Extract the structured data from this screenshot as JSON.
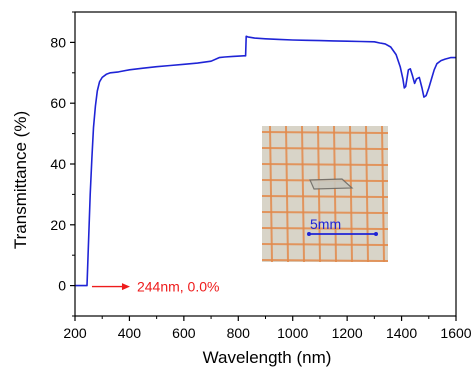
{
  "chart_data": {
    "type": "line",
    "title": "",
    "xlabel": "Wavelength (nm)",
    "ylabel": "Transmittance (%)",
    "xlim": [
      200,
      1600
    ],
    "ylim": [
      -10,
      90
    ],
    "x_ticks": [
      200,
      400,
      600,
      800,
      1000,
      1200,
      1400,
      1600
    ],
    "y_ticks": [
      0,
      20,
      40,
      60,
      80
    ],
    "grid": false,
    "legend": "none",
    "line_color": "#1f24d6",
    "series": [
      {
        "x": [
          200,
          244,
          250,
          256,
          262,
          268,
          275,
          282,
          290,
          300,
          315,
          330,
          360,
          400,
          450,
          500,
          550,
          600,
          650,
          700,
          730,
          750,
          780,
          820,
          827,
          829,
          835,
          860,
          900,
          950,
          1000,
          1050,
          1100,
          1150,
          1200,
          1250,
          1300,
          1320,
          1340,
          1360,
          1380,
          1395,
          1405,
          1410,
          1415,
          1425,
          1432,
          1440,
          1448,
          1455,
          1465,
          1475,
          1482,
          1490,
          1500,
          1510,
          1520,
          1530,
          1545,
          1560,
          1580,
          1600
        ],
        "y": [
          0,
          0,
          15,
          30,
          42,
          52,
          59,
          64,
          67,
          68.5,
          69.5,
          70,
          70.3,
          71,
          71.5,
          72,
          72.4,
          72.8,
          73.2,
          73.8,
          75,
          75.2,
          75.4,
          75.6,
          75.6,
          82,
          81.8,
          81.4,
          81.2,
          81,
          80.8,
          80.7,
          80.6,
          80.5,
          80.4,
          80.3,
          80.2,
          79.8,
          79.5,
          78.5,
          76,
          72,
          68,
          65,
          65.5,
          71,
          71.3,
          69,
          66.5,
          68,
          68.5,
          65,
          62,
          62.5,
          65,
          68,
          71,
          73,
          74,
          74.5,
          75,
          75
        ]
      }
    ],
    "annotations": [
      {
        "text": "244nm, 0.0%",
        "color": "#ee1c1c",
        "x": 244,
        "y": 0
      }
    ],
    "inset": {
      "scale_label": "5mm",
      "scale_color": "#1f24d6",
      "grid_color": "#e38a4b",
      "paper_color": "#d8d4c8"
    }
  }
}
